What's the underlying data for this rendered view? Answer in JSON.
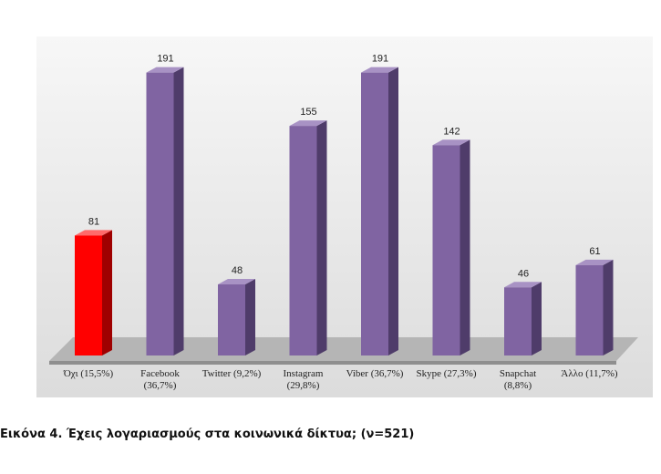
{
  "caption": "Εικόνα 4. Έχεις λογαριασμούς στα κοινωνικά δίκτυα; (ν=521)",
  "colors": {
    "highlight_front": "#ff0000",
    "highlight_side": "#9e0000",
    "highlight_top": "#ff6a6a",
    "bar_front": "#8064a2",
    "bar_side": "#4f3c6a",
    "bar_top": "#a892c4",
    "floor": "#b5b5b5"
  },
  "chart_data": {
    "type": "bar",
    "categories": [
      "Όχι (15,5%)",
      "Facebook\n(36,7%)",
      "Twitter (9,2%)",
      "Instagram\n(29,8%)",
      "Viber (36,7%)",
      "Skype (27,3%)",
      "Snapchat\n(8,8%)",
      "Άλλο (11,7%)"
    ],
    "values": [
      81,
      191,
      48,
      155,
      191,
      142,
      46,
      61
    ],
    "value_labels": [
      "81",
      "191",
      "48",
      "155",
      "191",
      "142",
      "46",
      "61"
    ],
    "highlight_index": 0,
    "ylim": [
      0,
      200
    ],
    "grid": false,
    "legend": "none"
  }
}
